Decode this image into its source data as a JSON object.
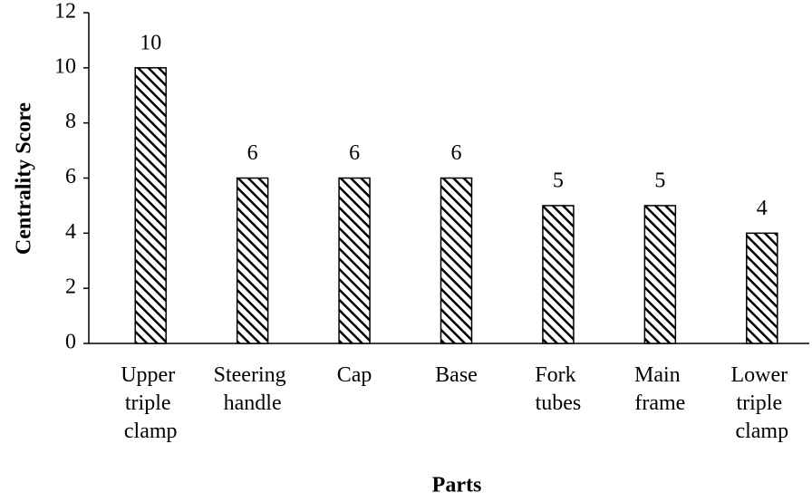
{
  "chart_data": {
    "type": "bar",
    "xlabel": "Parts",
    "ylabel": "Centrality Score",
    "categories": [
      "Upper triple clamp",
      "Steering handle",
      "Cap",
      "Base",
      "Fork tubes",
      "Main frame",
      "Lower triple clamp"
    ],
    "values": [
      10,
      6,
      6,
      6,
      5,
      5,
      4
    ],
    "color": "#000000",
    "ylim": [
      0,
      12
    ],
    "yticks": [
      0,
      2,
      4,
      6,
      8,
      10,
      12
    ],
    "grid": false
  }
}
